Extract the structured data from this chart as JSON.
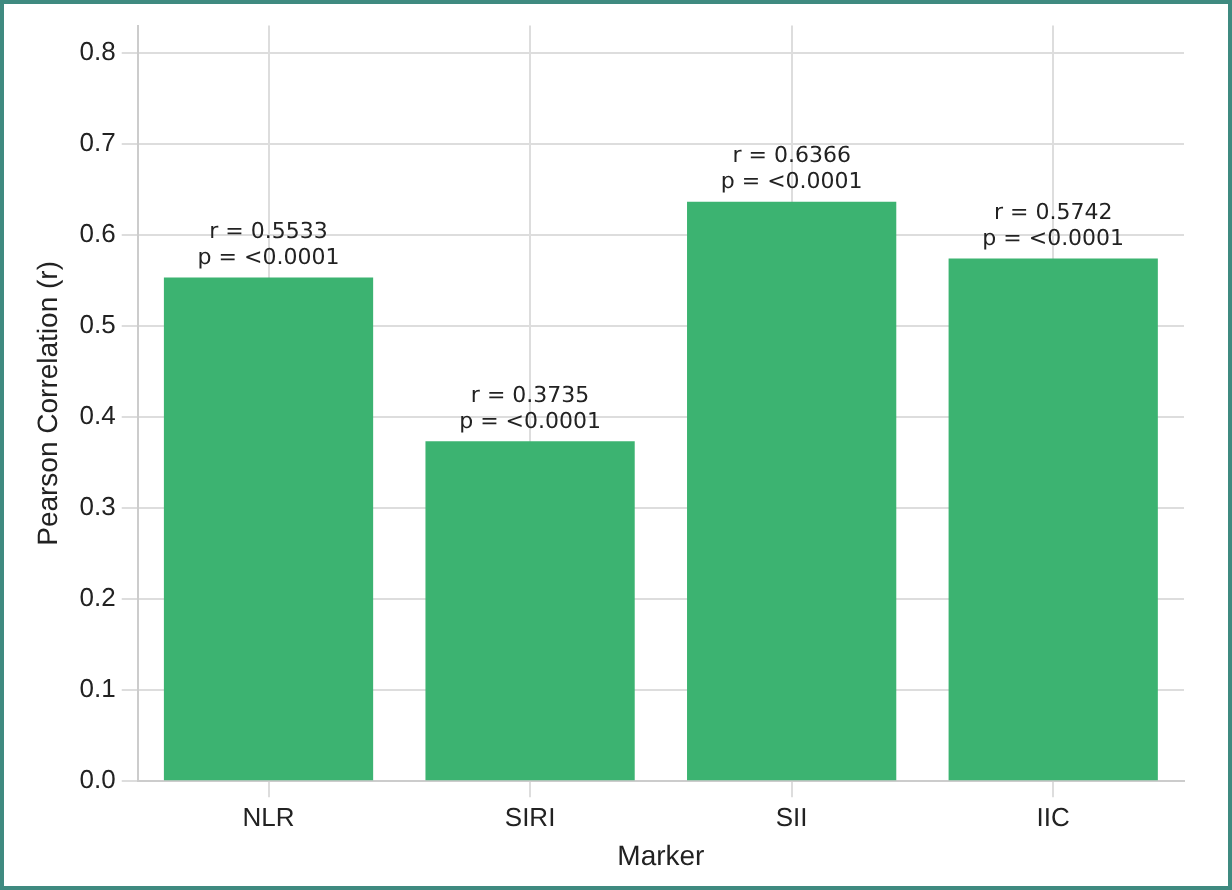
{
  "chart_data": {
    "type": "bar",
    "xlabel": "Marker",
    "ylabel": "Pearson Correlation (r)",
    "categories": [
      "NLR",
      "SIRI",
      "SII",
      "IIC"
    ],
    "values": [
      0.5533,
      0.3735,
      0.6366,
      0.5742
    ],
    "value_labels": [
      "r = 0.5533\np = <0.0001",
      "r = 0.3735\np = <0.0001",
      "r = 0.6366\np = <0.0001",
      "r = 0.5742\np = <0.0001"
    ],
    "color": "#3cb371",
    "ylim": [
      0,
      0.83
    ],
    "yticks": [
      {
        "value": 0,
        "label": "0.0"
      },
      0.1,
      0.2,
      0.3,
      0.4,
      0.5,
      0.6,
      0.7,
      0.8
    ],
    "grid": true,
    "legend": false
  }
}
